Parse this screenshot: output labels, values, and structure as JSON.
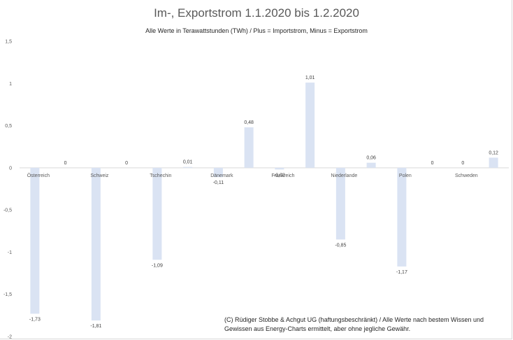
{
  "chart_data": {
    "type": "bar",
    "title": "Im-, Exportstrom 1.1.2020 bis 1.2.2020",
    "subtitle": "Alle Werte in Terawattstunden (TWh) / Plus = Importstrom, Minus = Exportstrom",
    "categories": [
      "Österreich",
      "Schweiz",
      "Tschechin",
      "Dänemark",
      "Frankreich",
      "Niederlande",
      "Polen",
      "Schweden"
    ],
    "series": [
      {
        "values": [
          -1.73,
          -1.81,
          -1.09,
          -0.11,
          -0.02,
          -0.85,
          -1.17,
          0
        ]
      },
      {
        "values": [
          0,
          0,
          0.01,
          0.48,
          1.01,
          0.06,
          0,
          0.12
        ]
      }
    ],
    "value_labels": [
      [
        "-1,73",
        "-1,81",
        "-1,09",
        "-0,11",
        "-0,02",
        "-0,85",
        "-1,17",
        "0"
      ],
      [
        "0",
        "0",
        "0,01",
        "0,48",
        "1,01",
        "0,06",
        "0",
        "0,12"
      ]
    ],
    "y_ticks": [
      "-2",
      "-1,5",
      "-1",
      "-0,5",
      "0",
      "0,5",
      "1",
      "1,5"
    ],
    "ylim": [
      -2,
      1.5
    ],
    "grid": false,
    "bar_color": "#dae3f3",
    "note_line1": "(C) Rüdiger Stobbe & Achgut UG (haftungsbeschränkt) / Alle Werte nach bestem Wissen und",
    "note_line2": "Gewissen aus Energy-Charts ermittelt, aber ohne jegliche Gewähr."
  }
}
